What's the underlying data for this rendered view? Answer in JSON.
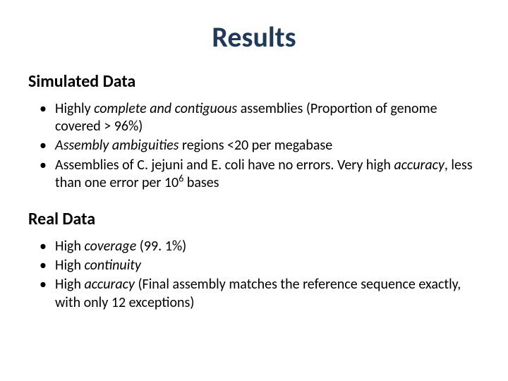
{
  "title": "Results",
  "title_color": "#1f3a5a",
  "title_fontsize": 40,
  "body_fontsize": 20,
  "heading_fontsize": 24,
  "background_color": "#ffffff",
  "text_color": "#000000",
  "sections": [
    {
      "heading": "Simulated Data",
      "bullets": [
        {
          "pre": "Highly ",
          "em": "complete and contiguous",
          "post": " assemblies (Proportion of genome covered > 96%)"
        },
        {
          "pre": "",
          "em": "Assembly ambiguities",
          "post": " regions <20 per megabase"
        },
        {
          "pre": "Assemblies of C. jejuni and E. coli have no errors. Very high ",
          "em": "accuracy",
          "post": ", less than one error per 10",
          "sup": "6",
          "post2": " bases"
        }
      ]
    },
    {
      "heading": "Real Data",
      "bullets": [
        {
          "pre": "High ",
          "em": "coverage",
          "post": " (99. 1%)"
        },
        {
          "pre": "High ",
          "em": "continuity",
          "post": ""
        },
        {
          "pre": "High ",
          "em": "accuracy",
          "post": " (Final assembly matches the reference sequence exactly, with only 12 exceptions)"
        }
      ]
    }
  ]
}
